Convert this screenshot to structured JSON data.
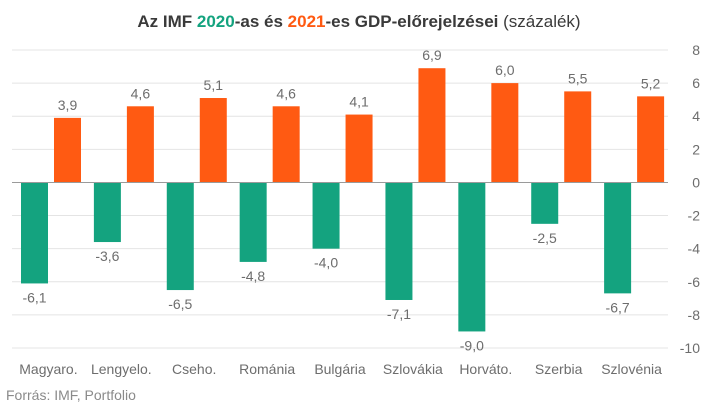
{
  "title": {
    "prefix": "Az IMF ",
    "year1": "2020",
    "middle": "-as és ",
    "year2": "2021",
    "suffix": "-es GDP-előrejelzései ",
    "unit": "(százalék)"
  },
  "source": "Forrás: IMF, Portfolio",
  "colors": {
    "s2020": "#14a37f",
    "s2021": "#ff5a12",
    "grid": "#e4e4e4",
    "zero": "#9a9a9a",
    "label": "#6d6d6d"
  },
  "chart_data": {
    "type": "bar",
    "categories": [
      "Magyaro.",
      "Lengyelo.",
      "Cseho.",
      "Románia",
      "Bulgária",
      "Szlovákia",
      "Horváto.",
      "Szerbia",
      "Szlovénia"
    ],
    "series": [
      {
        "name": "2020",
        "values": [
          -6.1,
          -3.6,
          -6.5,
          -4.8,
          -4.0,
          -7.1,
          -9.0,
          -2.5,
          -6.7
        ],
        "labels": [
          "-6,1",
          "-3,6",
          "-6,5",
          "-4,8",
          "-4,0",
          "-7,1",
          "-9,0",
          "-2,5",
          "-6,7"
        ]
      },
      {
        "name": "2021",
        "values": [
          3.9,
          4.6,
          5.1,
          4.6,
          4.1,
          6.9,
          6.0,
          5.5,
          5.2
        ],
        "labels": [
          "3,9",
          "4,6",
          "5,1",
          "4,6",
          "4,1",
          "6,9",
          "6,0",
          "5,5",
          "5,2"
        ]
      }
    ],
    "yticks": [
      8,
      6,
      4,
      2,
      0,
      -2,
      -4,
      -6,
      -8,
      -10
    ],
    "ylim": [
      -10,
      8
    ],
    "y_axis_side": "right",
    "grid": true,
    "legend": "none"
  }
}
